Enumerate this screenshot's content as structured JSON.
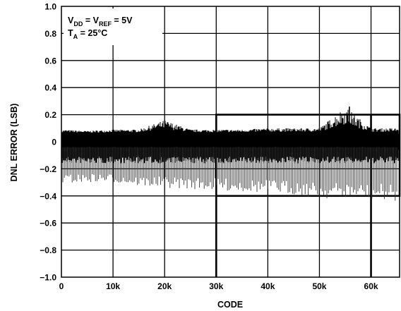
{
  "chart_data": {
    "type": "line",
    "title": "",
    "xlabel": "CODE",
    "ylabel": "DNL ERROR (LSB)",
    "xlim": [
      0,
      65535
    ],
    "ylim": [
      -1.0,
      1.0
    ],
    "grid": true,
    "x_ticks": [
      0,
      10000,
      20000,
      30000,
      40000,
      50000,
      60000
    ],
    "x_tick_labels": [
      "0",
      "10k",
      "20k",
      "30k",
      "40k",
      "50k",
      "60k"
    ],
    "y_ticks": [
      1.0,
      0.8,
      0.6,
      0.4,
      0.2,
      0,
      -0.2,
      -0.4,
      -0.6,
      -0.8,
      -1.0
    ],
    "y_tick_labels": [
      "1.0",
      "0.8",
      "0.6",
      "0.4",
      "0.2",
      "0",
      "−0.2",
      "−0.4",
      "−0.6",
      "−0.8",
      "−1.0"
    ],
    "annotations": {
      "line1": {
        "v1": "V",
        "v1_sub": "DD",
        "mid": " = V",
        "v2_sub": "REF",
        "end": " = 5V"
      },
      "line2": {
        "t": "T",
        "t_sub": "A",
        "end": " = 25°C"
      }
    },
    "series": [
      {
        "dense_band": {
          "upper": 0.06,
          "lower": -0.06
        },
        "envelope": {
          "x": [
            0,
            5000,
            10000,
            15000,
            20000,
            25000,
            30000,
            35000,
            40000,
            45000,
            50000,
            55000,
            60000,
            65535
          ],
          "max": [
            0.09,
            0.08,
            0.09,
            0.09,
            0.16,
            0.09,
            0.09,
            0.09,
            0.1,
            0.1,
            0.1,
            0.26,
            0.1,
            0.1
          ],
          "min": [
            -0.31,
            -0.3,
            -0.3,
            -0.33,
            -0.34,
            -0.35,
            -0.36,
            -0.37,
            -0.38,
            -0.39,
            -0.42,
            -0.42,
            -0.43,
            -0.44
          ]
        }
      }
    ]
  }
}
